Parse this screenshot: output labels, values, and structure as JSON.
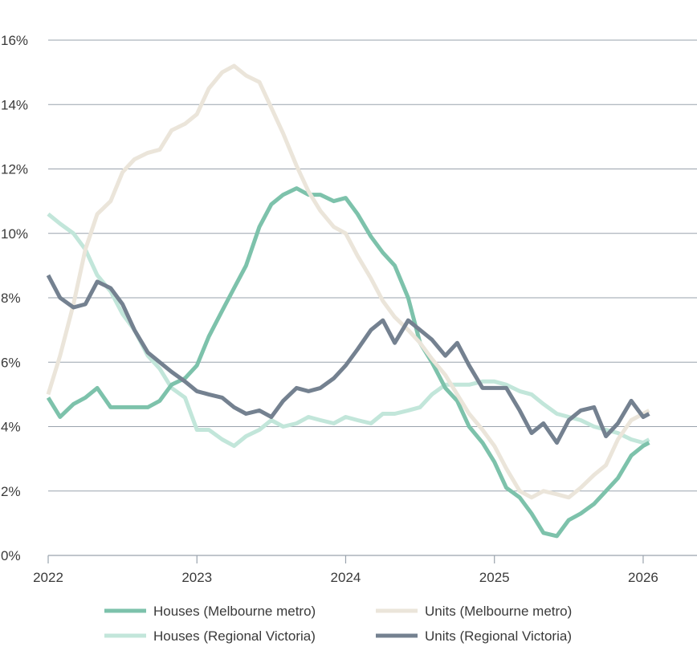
{
  "chart_data": {
    "type": "line",
    "title": "",
    "xlabel": "",
    "ylabel": "",
    "ylim": [
      0,
      16
    ],
    "yticks": [
      0,
      2,
      4,
      6,
      8,
      10,
      12,
      14,
      16
    ],
    "ytick_labels": [
      "0%",
      "2%",
      "4%",
      "6%",
      "8%",
      "10%",
      "12%",
      "14%",
      "16%"
    ],
    "xticks": [
      2022,
      2023,
      2024,
      2025,
      2026
    ],
    "xtick_labels": [
      "2022",
      "2023",
      "2024",
      "2025",
      "2026"
    ],
    "grid": "horizontal",
    "legend_position": "bottom",
    "series": [
      {
        "name": "Houses (Melbourne metro)",
        "color": "#7dc2ab",
        "x": [
          2022.0,
          2022.08,
          2022.17,
          2022.25,
          2022.33,
          2022.42,
          2022.5,
          2022.58,
          2022.67,
          2022.75,
          2022.83,
          2022.92,
          2023.0,
          2023.08,
          2023.17,
          2023.25,
          2023.33,
          2023.42,
          2023.5,
          2023.58,
          2023.67,
          2023.75,
          2023.83,
          2023.92,
          2024.0,
          2024.08,
          2024.17,
          2024.25,
          2024.33,
          2024.42,
          2024.5,
          2024.58,
          2024.67,
          2024.75,
          2024.83,
          2024.92,
          2025.0,
          2025.08,
          2025.17,
          2025.25,
          2025.33,
          2025.42,
          2025.5,
          2025.58,
          2025.67,
          2025.75,
          2025.83,
          2025.92,
          2026.0,
          2026.04
        ],
        "values": [
          4.9,
          4.3,
          4.7,
          4.9,
          5.2,
          4.6,
          4.6,
          4.6,
          4.6,
          4.8,
          5.3,
          5.5,
          5.9,
          6.8,
          7.6,
          8.3,
          9.0,
          10.2,
          10.9,
          11.2,
          11.4,
          11.2,
          11.2,
          11.0,
          11.1,
          10.6,
          9.9,
          9.4,
          9.0,
          8.0,
          6.6,
          6.0,
          5.2,
          4.8,
          4.0,
          3.5,
          2.9,
          2.1,
          1.8,
          1.3,
          0.7,
          0.6,
          1.1,
          1.3,
          1.6,
          2.0,
          2.4,
          3.1,
          3.4,
          3.5
        ]
      },
      {
        "name": "Units (Melbourne metro)",
        "color": "#ebe5da",
        "x": [
          2022.0,
          2022.08,
          2022.17,
          2022.25,
          2022.33,
          2022.42,
          2022.5,
          2022.58,
          2022.67,
          2022.75,
          2022.83,
          2022.92,
          2023.0,
          2023.08,
          2023.17,
          2023.25,
          2023.33,
          2023.42,
          2023.5,
          2023.58,
          2023.67,
          2023.75,
          2023.83,
          2023.92,
          2024.0,
          2024.08,
          2024.17,
          2024.25,
          2024.33,
          2024.42,
          2024.5,
          2024.58,
          2024.67,
          2024.75,
          2024.83,
          2024.92,
          2025.0,
          2025.08,
          2025.17,
          2025.25,
          2025.33,
          2025.42,
          2025.5,
          2025.58,
          2025.67,
          2025.75,
          2025.83,
          2025.92,
          2026.0,
          2026.04
        ],
        "values": [
          5.0,
          6.2,
          7.8,
          9.5,
          10.6,
          11.0,
          11.9,
          12.3,
          12.5,
          12.6,
          13.2,
          13.4,
          13.7,
          14.5,
          15.0,
          15.2,
          14.9,
          14.7,
          13.9,
          13.1,
          12.1,
          11.3,
          10.7,
          10.2,
          10.0,
          9.3,
          8.6,
          7.9,
          7.4,
          7.0,
          6.6,
          6.1,
          5.6,
          5.0,
          4.4,
          3.9,
          3.4,
          2.7,
          2.0,
          1.8,
          2.0,
          1.9,
          1.8,
          2.1,
          2.5,
          2.8,
          3.6,
          4.2,
          4.4,
          4.5
        ]
      },
      {
        "name": "Houses (Regional Victoria)",
        "color": "#c2e6da",
        "x": [
          2022.0,
          2022.08,
          2022.17,
          2022.25,
          2022.33,
          2022.42,
          2022.5,
          2022.58,
          2022.67,
          2022.75,
          2022.83,
          2022.92,
          2023.0,
          2023.08,
          2023.17,
          2023.25,
          2023.33,
          2023.42,
          2023.5,
          2023.58,
          2023.67,
          2023.75,
          2023.83,
          2023.92,
          2024.0,
          2024.08,
          2024.17,
          2024.25,
          2024.33,
          2024.42,
          2024.5,
          2024.58,
          2024.67,
          2024.75,
          2024.83,
          2024.92,
          2025.0,
          2025.08,
          2025.17,
          2025.25,
          2025.33,
          2025.42,
          2025.5,
          2025.58,
          2025.67,
          2025.75,
          2025.83,
          2025.92,
          2026.0,
          2026.04
        ],
        "values": [
          10.6,
          10.3,
          10.0,
          9.5,
          8.7,
          8.2,
          7.5,
          7.0,
          6.2,
          5.8,
          5.2,
          4.9,
          3.9,
          3.9,
          3.6,
          3.4,
          3.7,
          3.9,
          4.2,
          4.0,
          4.1,
          4.3,
          4.2,
          4.1,
          4.3,
          4.2,
          4.1,
          4.4,
          4.4,
          4.5,
          4.6,
          5.0,
          5.3,
          5.3,
          5.3,
          5.4,
          5.4,
          5.3,
          5.1,
          5.0,
          4.7,
          4.4,
          4.3,
          4.2,
          4.0,
          3.9,
          3.8,
          3.6,
          3.5,
          3.6
        ]
      },
      {
        "name": "Units (Regional Victoria)",
        "color": "#748190",
        "x": [
          2022.0,
          2022.08,
          2022.17,
          2022.25,
          2022.33,
          2022.42,
          2022.5,
          2022.58,
          2022.67,
          2022.75,
          2022.83,
          2022.92,
          2023.0,
          2023.08,
          2023.17,
          2023.25,
          2023.33,
          2023.42,
          2023.5,
          2023.58,
          2023.67,
          2023.75,
          2023.83,
          2023.92,
          2024.0,
          2024.08,
          2024.17,
          2024.25,
          2024.33,
          2024.42,
          2024.5,
          2024.58,
          2024.67,
          2024.75,
          2024.83,
          2024.92,
          2025.0,
          2025.08,
          2025.17,
          2025.25,
          2025.33,
          2025.42,
          2025.5,
          2025.58,
          2025.67,
          2025.75,
          2025.83,
          2025.92,
          2026.0,
          2026.04
        ],
        "values": [
          8.7,
          8.0,
          7.7,
          7.8,
          8.5,
          8.3,
          7.8,
          7.0,
          6.3,
          6.0,
          5.7,
          5.4,
          5.1,
          5.0,
          4.9,
          4.6,
          4.4,
          4.5,
          4.3,
          4.8,
          5.2,
          5.1,
          5.2,
          5.5,
          5.9,
          6.4,
          7.0,
          7.3,
          6.6,
          7.3,
          7.0,
          6.7,
          6.2,
          6.6,
          5.9,
          5.2,
          5.2,
          5.2,
          4.5,
          3.8,
          4.1,
          3.5,
          4.2,
          4.5,
          4.6,
          3.7,
          4.1,
          4.8,
          4.3,
          4.4
        ]
      }
    ]
  }
}
